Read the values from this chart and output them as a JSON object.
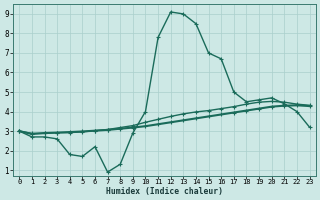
{
  "xlabel": "Humidex (Indice chaleur)",
  "background_color": "#cde8e5",
  "grid_color": "#aacfcc",
  "line_color": "#1a6b5a",
  "xlim": [
    -0.5,
    23.5
  ],
  "ylim": [
    0.7,
    9.5
  ],
  "xticks": [
    0,
    1,
    2,
    3,
    4,
    5,
    6,
    7,
    8,
    9,
    10,
    11,
    12,
    13,
    14,
    15,
    16,
    17,
    18,
    19,
    20,
    21,
    22,
    23
  ],
  "yticks": [
    1,
    2,
    3,
    4,
    5,
    6,
    7,
    8,
    9
  ],
  "line1_x": [
    0,
    1,
    2,
    3,
    4,
    5,
    6,
    7,
    8,
    9,
    10,
    11,
    12,
    13,
    14,
    15,
    16,
    17,
    18,
    19,
    20,
    21,
    22,
    23
  ],
  "line1_y": [
    3.0,
    2.7,
    2.7,
    2.6,
    1.8,
    1.7,
    2.2,
    0.9,
    1.3,
    2.9,
    4.0,
    7.8,
    9.1,
    9.0,
    8.5,
    7.0,
    6.7,
    5.0,
    4.5,
    4.6,
    4.7,
    4.4,
    4.0,
    3.2
  ],
  "line2_x": [
    0,
    1,
    2,
    3,
    4,
    5,
    6,
    7,
    8,
    9,
    10,
    11,
    12,
    13,
    14,
    15,
    16,
    17,
    18,
    19,
    20,
    21,
    22,
    23
  ],
  "line2_y": [
    3.0,
    2.85,
    2.9,
    2.92,
    2.95,
    2.98,
    3.02,
    3.06,
    3.12,
    3.18,
    3.25,
    3.35,
    3.45,
    3.55,
    3.65,
    3.75,
    3.85,
    3.95,
    4.05,
    4.15,
    4.25,
    4.3,
    4.32,
    4.28
  ],
  "line3_x": [
    0,
    1,
    2,
    3,
    4,
    5,
    6,
    7,
    8,
    9,
    10,
    11,
    12,
    13,
    14,
    15,
    16,
    17,
    18,
    19,
    20,
    21,
    22,
    23
  ],
  "line3_y": [
    3.0,
    2.88,
    2.88,
    2.92,
    2.92,
    2.96,
    3.02,
    3.08,
    3.18,
    3.28,
    3.45,
    3.6,
    3.75,
    3.88,
    3.98,
    4.05,
    4.15,
    4.25,
    4.38,
    4.48,
    4.52,
    4.48,
    4.38,
    4.32
  ],
  "line1_lw": 1.0,
  "line2_lw": 1.5,
  "line3_lw": 1.0,
  "marker_size": 3,
  "xlabel_fontsize": 5.8,
  "tick_fontsize": 5.0
}
